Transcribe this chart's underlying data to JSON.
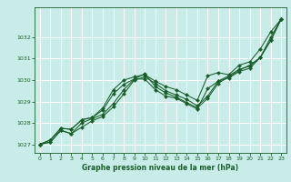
{
  "xlabel": "Graphe pression niveau de la mer (hPa)",
  "bg_color": "#c8ece8",
  "grid_color": "#aadddd",
  "line_color": "#1a5e2a",
  "marker_color": "#1a5e2a",
  "ylim": [
    1026.6,
    1033.4
  ],
  "xlim": [
    -0.5,
    23.5
  ],
  "yticks": [
    1027,
    1028,
    1029,
    1030,
    1031,
    1032
  ],
  "xticks": [
    0,
    1,
    2,
    3,
    4,
    5,
    6,
    7,
    8,
    9,
    10,
    11,
    12,
    13,
    14,
    15,
    16,
    17,
    18,
    19,
    20,
    21,
    22,
    23
  ],
  "series": [
    [
      1027.0,
      1027.1,
      1027.65,
      1027.5,
      1027.8,
      1028.1,
      1028.3,
      1028.75,
      1029.35,
      1030.0,
      1030.15,
      1029.85,
      1029.5,
      1029.3,
      1029.1,
      1028.8,
      1029.25,
      1029.95,
      1030.2,
      1030.5,
      1030.65,
      1031.05,
      1031.85,
      1032.85
    ],
    [
      1027.0,
      1027.1,
      1027.65,
      1027.5,
      1028.0,
      1028.2,
      1028.4,
      1028.9,
      1029.55,
      1030.05,
      1030.3,
      1029.7,
      1029.4,
      1029.2,
      1028.95,
      1028.7,
      1029.15,
      1029.85,
      1030.15,
      1030.45,
      1030.7,
      1031.05,
      1031.85,
      1032.85
    ],
    [
      1027.0,
      1027.2,
      1027.75,
      1027.7,
      1028.15,
      1028.25,
      1028.6,
      1029.35,
      1029.8,
      1030.05,
      1030.05,
      1029.55,
      1029.25,
      1029.15,
      1028.9,
      1028.65,
      1029.6,
      1029.95,
      1030.1,
      1030.4,
      1030.55,
      1031.05,
      1032.0,
      1032.85
    ],
    [
      1027.0,
      1027.2,
      1027.75,
      1027.7,
      1028.15,
      1028.25,
      1028.7,
      1029.55,
      1030.0,
      1030.15,
      1030.25,
      1029.95,
      1029.7,
      1029.55,
      1029.3,
      1029.05,
      1030.2,
      1030.35,
      1030.25,
      1030.7,
      1030.85,
      1031.45,
      1032.25,
      1032.85
    ]
  ]
}
